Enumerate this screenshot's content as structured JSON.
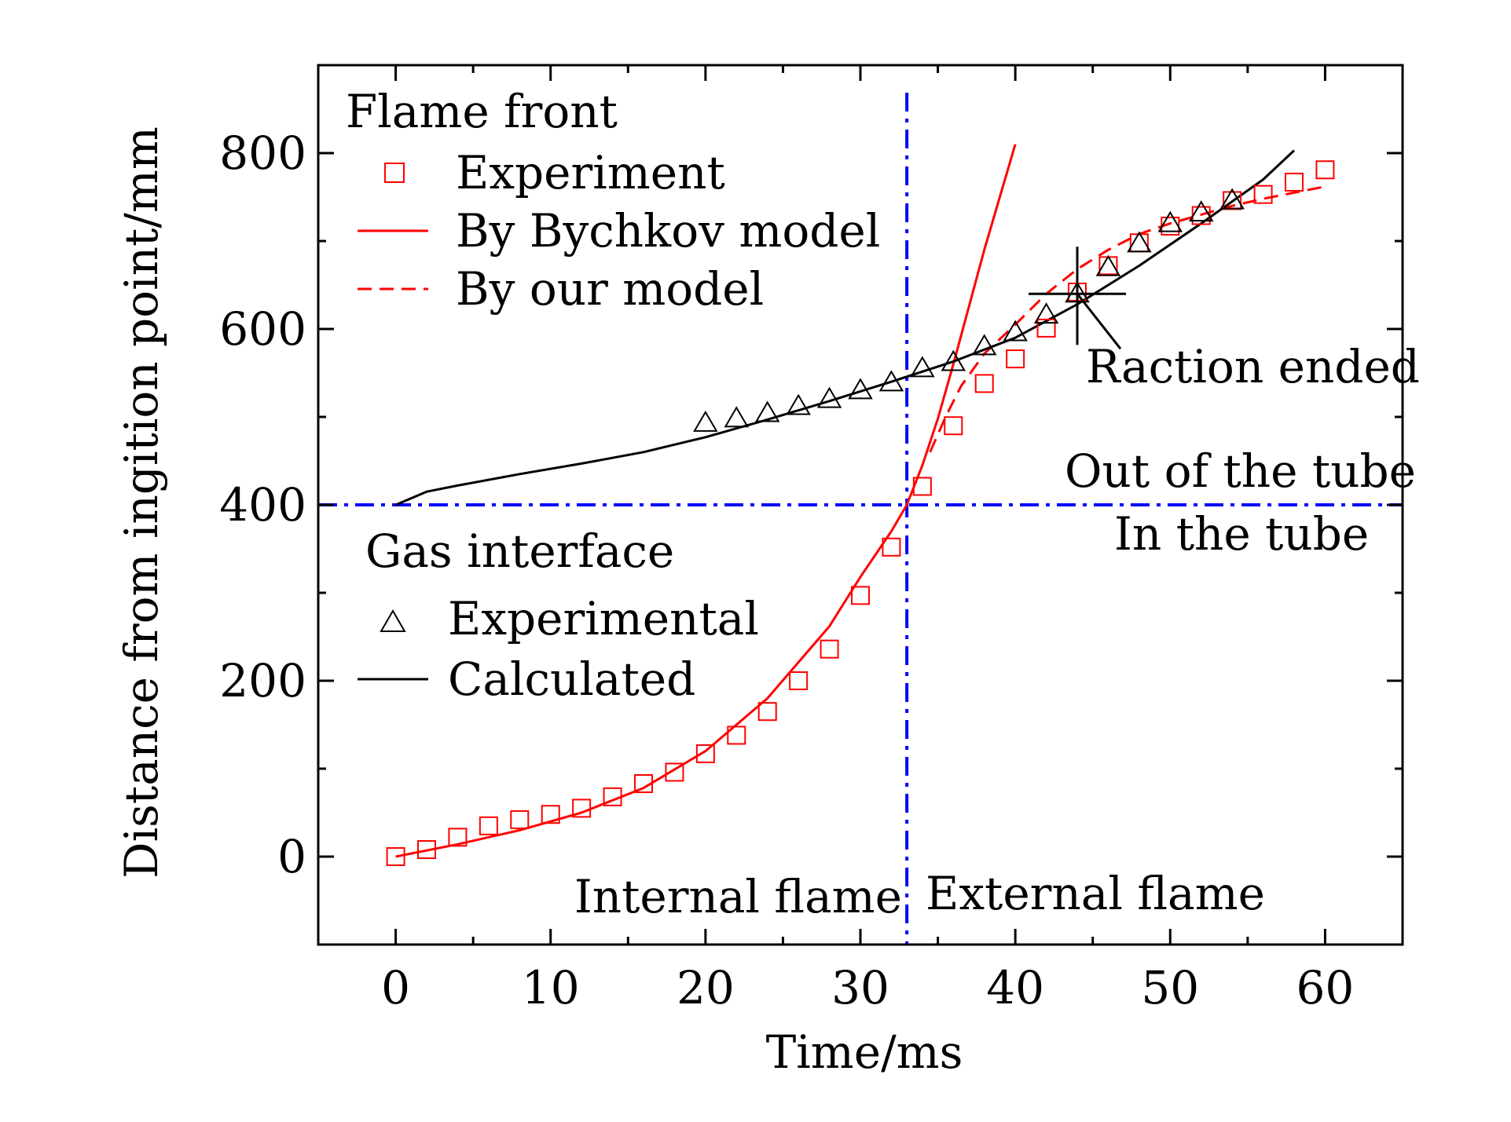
{
  "chart_data": {
    "type": "scatter",
    "xlabel": "Time/ms",
    "ylabel": "Distance from ingition point/mm",
    "xlim": [
      -5,
      65
    ],
    "ylim": [
      -100,
      900
    ],
    "xticks": [
      0,
      10,
      20,
      30,
      40,
      50,
      60
    ],
    "yticks": [
      0,
      200,
      400,
      600,
      800
    ],
    "xtick_labels": [
      "0",
      "10",
      "20",
      "30",
      "40",
      "50",
      "60"
    ],
    "ytick_labels": [
      "0",
      "200",
      "400",
      "600",
      "800"
    ],
    "grid": false,
    "legend": {
      "flame_title": "Flame front",
      "gas_title": "Gas interface",
      "experiment": "Experiment",
      "bychkov": "By Bychkov model",
      "ours": "By our model",
      "experimental": "Experimental",
      "calculated": "Calculated"
    },
    "colors": {
      "flame": "#ff0000",
      "gas": "#000000",
      "reference": "#0000ff"
    },
    "series": [
      {
        "name": "Experiment",
        "kind": "marker",
        "marker": "square",
        "color": "#ff0000",
        "points": [
          [
            0,
            0
          ],
          [
            2,
            8
          ],
          [
            4,
            22
          ],
          [
            6,
            35
          ],
          [
            8,
            42
          ],
          [
            10,
            48
          ],
          [
            12,
            55
          ],
          [
            14,
            68
          ],
          [
            16,
            83
          ],
          [
            18,
            96
          ],
          [
            20,
            117
          ],
          [
            22,
            138
          ],
          [
            24,
            165
          ],
          [
            26,
            200
          ],
          [
            28,
            236
          ],
          [
            30,
            297
          ],
          [
            32,
            352
          ],
          [
            34,
            421
          ],
          [
            36,
            490
          ],
          [
            38,
            538
          ],
          [
            40,
            566
          ],
          [
            42,
            601
          ],
          [
            44,
            642
          ],
          [
            46,
            672
          ],
          [
            48,
            698
          ],
          [
            50,
            717
          ],
          [
            52,
            729
          ],
          [
            54,
            746
          ],
          [
            56,
            753
          ],
          [
            58,
            767
          ],
          [
            60,
            781
          ]
        ]
      },
      {
        "name": "By Bychkov model",
        "kind": "line",
        "dash": "solid",
        "color": "#ff0000",
        "points": [
          [
            0,
            0
          ],
          [
            4,
            14
          ],
          [
            8,
            30
          ],
          [
            12,
            50
          ],
          [
            16,
            78
          ],
          [
            20,
            120
          ],
          [
            24,
            180
          ],
          [
            28,
            262
          ],
          [
            30,
            318
          ],
          [
            32,
            370
          ],
          [
            33,
            400
          ],
          [
            34,
            445
          ],
          [
            35,
            498
          ],
          [
            36,
            560
          ],
          [
            37,
            625
          ],
          [
            38,
            690
          ],
          [
            39,
            750
          ],
          [
            40,
            810
          ]
        ]
      },
      {
        "name": "By our model",
        "kind": "line",
        "dash": "dashed",
        "color": "#ff0000",
        "points": [
          [
            34.5,
            460
          ],
          [
            35.5,
            500
          ],
          [
            36.5,
            535
          ],
          [
            38,
            572
          ],
          [
            40,
            605
          ],
          [
            42,
            640
          ],
          [
            44,
            668
          ],
          [
            46,
            690
          ],
          [
            48,
            708
          ],
          [
            50,
            720
          ],
          [
            52,
            730
          ],
          [
            54,
            740
          ],
          [
            56,
            748
          ],
          [
            58,
            755
          ],
          [
            60,
            762
          ]
        ]
      },
      {
        "name": "Experimental",
        "kind": "marker",
        "marker": "triangle",
        "color": "#000000",
        "points": [
          [
            20,
            493
          ],
          [
            22,
            498
          ],
          [
            24,
            504
          ],
          [
            26,
            512
          ],
          [
            28,
            520
          ],
          [
            30,
            530
          ],
          [
            32,
            539
          ],
          [
            34,
            555
          ],
          [
            36,
            562
          ],
          [
            38,
            580
          ],
          [
            40,
            596
          ],
          [
            42,
            616
          ],
          [
            44,
            640
          ],
          [
            46,
            670
          ],
          [
            48,
            697
          ],
          [
            50,
            720
          ],
          [
            52,
            732
          ],
          [
            54,
            746
          ]
        ]
      },
      {
        "name": "Calculated",
        "kind": "line",
        "dash": "solid",
        "color": "#000000",
        "points": [
          [
            0,
            400
          ],
          [
            2,
            415
          ],
          [
            4,
            422
          ],
          [
            8,
            435
          ],
          [
            12,
            447
          ],
          [
            16,
            460
          ],
          [
            20,
            477
          ],
          [
            24,
            497
          ],
          [
            28,
            518
          ],
          [
            32,
            540
          ],
          [
            36,
            563
          ],
          [
            40,
            590
          ],
          [
            44,
            628
          ],
          [
            48,
            672
          ],
          [
            52,
            720
          ],
          [
            56,
            770
          ],
          [
            58,
            803
          ]
        ]
      }
    ],
    "reference_lines": [
      {
        "orientation": "vertical",
        "x": 33,
        "style": "dash-dot",
        "color": "#0000ff"
      },
      {
        "orientation": "horizontal",
        "y": 400,
        "style": "dash-dot",
        "color": "#0000ff"
      }
    ],
    "crosshair": {
      "x": 44,
      "y": 640
    },
    "annotations": {
      "reaction_ended": "Raction ended",
      "out_of_tube": "Out of the tube",
      "in_tube": "In the tube",
      "internal_flame": "Internal flame",
      "external_flame": "External flame"
    }
  }
}
